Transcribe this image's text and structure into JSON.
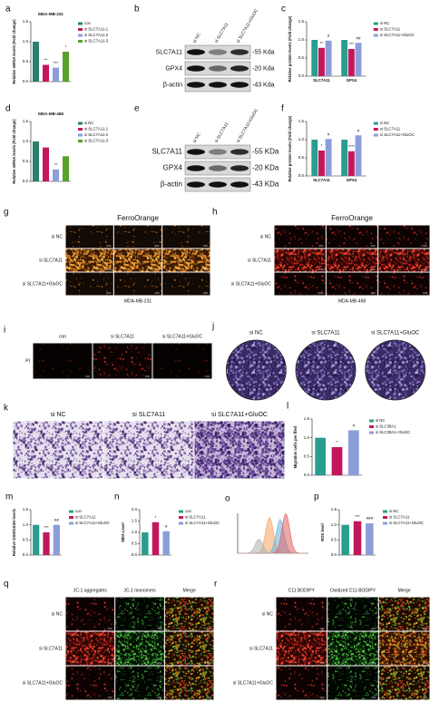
{
  "chart_data": [
    {
      "panel": "a",
      "type": "bar",
      "title": "MDA-MB-231",
      "ylabel": "Relative mRNA levels (Fold change)",
      "categories": [
        "con",
        "si SLC7A11-1",
        "si SLC7A11-2",
        "si SLC7A11-3"
      ],
      "values": [
        1.0,
        0.42,
        0.35,
        0.75
      ],
      "colors": [
        "#2a7f6f",
        "#c2185b",
        "#8c9ed9",
        "#5aa02c"
      ],
      "sig": [
        null,
        "**",
        "***",
        "*"
      ],
      "ylim": [
        0,
        1.5
      ],
      "yticks": [
        {
          "value": 0,
          "label": "0.0"
        },
        {
          "value": 0.5,
          "label": "0.5"
        },
        {
          "value": 1,
          "label": "1.0"
        },
        {
          "value": 1.5,
          "label": "1.5"
        }
      ]
    },
    {
      "panel": "c",
      "type": "grouped_bar",
      "ylabel": "Relative protein levels (Fold change)",
      "categories": [
        "SLC7A11",
        "GPX4"
      ],
      "series": [
        {
          "name": "si NC",
          "color": "#2a9d8f",
          "values": [
            1.0,
            1.0
          ],
          "sig": [
            null,
            null
          ]
        },
        {
          "name": "si SLC7A11",
          "color": "#c2185b",
          "values": [
            0.78,
            0.75
          ],
          "sig": [
            "**",
            "***"
          ]
        },
        {
          "name": "si SLC7A11+GluOC",
          "color": "#8c9ed9",
          "values": [
            0.98,
            0.92
          ],
          "sig": [
            "#",
            "##"
          ]
        }
      ],
      "ylim": [
        0,
        1.5
      ],
      "yticks": [
        {
          "value": 0,
          "label": "0.0"
        },
        {
          "value": 0.5,
          "label": "0.5"
        },
        {
          "value": 1,
          "label": "1.0"
        },
        {
          "value": 1.5,
          "label": "1.5"
        }
      ]
    },
    {
      "panel": "d",
      "type": "bar",
      "title": "MDA-MB-468",
      "ylabel": "Relative mRNA levels (Fold change)",
      "categories": [
        "si NC",
        "si SLC7A11-1",
        "si SLC7A11-2",
        "si SLC7A11-3"
      ],
      "values": [
        1.0,
        0.85,
        0.3,
        0.63
      ],
      "colors": [
        "#2a7f6f",
        "#c2185b",
        "#8c9ed9",
        "#5aa02c"
      ],
      "sig": [
        null,
        null,
        "**",
        null
      ],
      "ylim": [
        0,
        1.5
      ],
      "yticks": [
        {
          "value": 0,
          "label": "0.0"
        },
        {
          "value": 0.5,
          "label": "0.5"
        },
        {
          "value": 1,
          "label": "1.0"
        },
        {
          "value": 1.5,
          "label": "1.5"
        }
      ]
    },
    {
      "panel": "f",
      "type": "grouped_bar",
      "ylabel": "Relative protein levels (Fold change)",
      "categories": [
        "SLC7A11",
        "GPX4"
      ],
      "series": [
        {
          "name": "si NC",
          "color": "#2a9d8f",
          "values": [
            1.0,
            1.0
          ],
          "sig": [
            null,
            null
          ]
        },
        {
          "name": "si SLC7A11",
          "color": "#c2185b",
          "values": [
            0.7,
            0.68
          ],
          "sig": [
            "*",
            "****"
          ]
        },
        {
          "name": "si SLC7A11+GluOC",
          "color": "#8c9ed9",
          "values": [
            1.02,
            1.12
          ],
          "sig": [
            "#",
            "#"
          ]
        }
      ],
      "ylim": [
        0,
        1.5
      ],
      "yticks": [
        {
          "value": 0,
          "label": "0.0"
        },
        {
          "value": 0.5,
          "label": "0.5"
        },
        {
          "value": 1,
          "label": "1.0"
        },
        {
          "value": 1.5,
          "label": "1.5"
        }
      ]
    },
    {
      "panel": "l",
      "type": "bar",
      "ylabel": "Migration cells per filed",
      "categories": [
        "si NC",
        "si SLC38A1",
        "si SLC38A1+GluOC"
      ],
      "values": [
        1.0,
        0.75,
        1.2
      ],
      "colors": [
        "#2a9d8f",
        "#c2185b",
        "#8c9ed9"
      ],
      "sig": [
        null,
        "*",
        "#"
      ],
      "ylim": [
        0,
        1.5
      ],
      "yticks": [
        {
          "value": 0,
          "label": "0.0"
        },
        {
          "value": 0.5,
          "label": "0.5"
        },
        {
          "value": 1,
          "label": "1.0"
        },
        {
          "value": 1.5,
          "label": "1.5"
        }
      ]
    },
    {
      "panel": "m",
      "type": "bar",
      "ylabel": "Relative GSH/GSSH levels",
      "categories": [
        "con",
        "si SLC7A11",
        "si SLC7A11+GluOC"
      ],
      "values": [
        1.0,
        0.75,
        1.0
      ],
      "colors": [
        "#2a9d8f",
        "#c2185b",
        "#8c9ed9"
      ],
      "sig": [
        null,
        "***",
        "##"
      ],
      "ylim": [
        0,
        1.5
      ],
      "yticks": [
        {
          "value": 0,
          "label": "0.0"
        },
        {
          "value": 0.5,
          "label": "0.5"
        },
        {
          "value": 1,
          "label": "1.0"
        },
        {
          "value": 1.5,
          "label": "1.5"
        }
      ]
    },
    {
      "panel": "n",
      "type": "bar",
      "ylabel": "MDA Level",
      "categories": [
        "con",
        "si SLC7A11",
        "si SLC7A11+GluOC"
      ],
      "values": [
        1.0,
        1.45,
        1.05
      ],
      "colors": [
        "#2a9d8f",
        "#c2185b",
        "#8c9ed9"
      ],
      "sig": [
        null,
        "*",
        "#"
      ],
      "ylim": [
        0,
        2
      ],
      "yticks": [
        {
          "value": 0,
          "label": "0.0"
        },
        {
          "value": 0.5,
          "label": "0.5"
        },
        {
          "value": 1,
          "label": "1.0"
        },
        {
          "value": 1.5,
          "label": "1.5"
        },
        {
          "value": 2,
          "label": "2.0"
        }
      ]
    },
    {
      "panel": "p",
      "type": "bar",
      "ylabel": "ROS level",
      "categories": [
        "si NC",
        "si SLC7A11",
        "si SLC7A11+GluOC"
      ],
      "values": [
        1.0,
        1.12,
        1.05
      ],
      "colors": [
        "#2a9d8f",
        "#c2185b",
        "#8c9ed9"
      ],
      "sig": [
        null,
        "***",
        "###"
      ],
      "ylim": [
        0,
        1.5
      ],
      "yticks": [
        {
          "value": 0,
          "label": "0.0"
        },
        {
          "value": 0.5,
          "label": "0.5"
        },
        {
          "value": 1,
          "label": "1.0"
        },
        {
          "value": 1.5,
          "label": "1.5"
        }
      ]
    }
  ],
  "blots": [
    {
      "panel": "b",
      "lanes": [
        "si NC",
        "si SLC7A11",
        "si SLC7A11+GluOC"
      ],
      "proteins": [
        "SLC7A11",
        "GPX4",
        "β-actin"
      ],
      "sizes": [
        "-55 Kda",
        "-20 Kda",
        "-43 Kda"
      ]
    },
    {
      "panel": "e",
      "lanes": [
        "si NC",
        "si SLC7A11",
        "si SLC7A11+GluOC"
      ],
      "proteins": [
        "SLC7A11",
        "GPX4",
        "β-actin"
      ],
      "sizes": [
        "-55 KDa",
        "-20 KDa",
        "-43 KDa"
      ]
    }
  ],
  "imaging": [
    {
      "panel": "g",
      "title": "FerroOrange",
      "rows": [
        "si NC",
        "si SLC7A11",
        "si SLC7A11+GluOC"
      ],
      "caption": "MDA-MB-231"
    },
    {
      "panel": "h",
      "title": "FerroOrange",
      "rows": [
        "si NC",
        "si SLC7A11",
        "si SLC7A11+GluOC"
      ],
      "caption": "MDA-MB-468"
    },
    {
      "panel": "i",
      "columns": [
        "con",
        "si SLC7A11",
        "si SLC7A11+GluOC"
      ],
      "rows": [
        "PI"
      ]
    },
    {
      "panel": "j",
      "columns": [
        "si NC",
        "si SLC7A11",
        "si SLC7A11+GluOC"
      ]
    },
    {
      "panel": "k",
      "columns": [
        "si NC",
        "si SLC7A11",
        "si SLC7A11+GluOC"
      ]
    },
    {
      "panel": "q",
      "columns": [
        "JC-1 aggregates",
        "JC-1 monomers",
        "Merge"
      ],
      "rows": [
        "si NC",
        "si SLC7A11",
        "si SLC7A11+GluOC"
      ]
    },
    {
      "panel": "r",
      "columns": [
        "C11 BODIPY",
        "Oxidized C11-BODIPY",
        "Merge"
      ],
      "rows": [
        "si NC",
        "si SLC7A11",
        "si SLC7A11+GluOC"
      ]
    }
  ],
  "flow": {
    "panel": "o"
  }
}
